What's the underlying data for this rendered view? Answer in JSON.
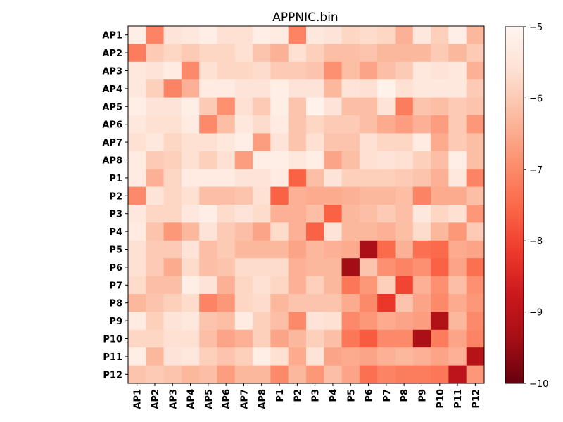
{
  "chart_data": {
    "type": "heatmap",
    "title": "APPNIC.bin",
    "labels": [
      "AP1",
      "AP2",
      "AP3",
      "AP4",
      "AP5",
      "AP6",
      "AP7",
      "AP8",
      "P1",
      "P2",
      "P3",
      "P4",
      "P5",
      "P6",
      "P7",
      "P8",
      "P9",
      "P10",
      "P11",
      "P12"
    ],
    "colorbar": {
      "min": -10,
      "max": -5,
      "ticks": [
        -10,
        -9,
        -8,
        -7,
        -6,
        -5
      ],
      "tick_labels": [
        "−10",
        "−9",
        "−8",
        "−7",
        "−6",
        "−5"
      ]
    },
    "values": [
      [
        -5.2,
        -7.1,
        -5.5,
        -5.4,
        -5.2,
        -5.6,
        -5.6,
        -5.2,
        -5.3,
        -7.1,
        -5.4,
        -5.5,
        -5.8,
        -5.7,
        -5.8,
        -6.4,
        -5.4,
        -5.9,
        -5.2,
        -6.3
      ],
      [
        -7.2,
        -6.0,
        -5.8,
        -6.0,
        -5.8,
        -5.8,
        -5.6,
        -6.1,
        -6.4,
        -5.6,
        -5.9,
        -6.2,
        -6.2,
        -6.1,
        -6.3,
        -6.3,
        -6.3,
        -6.0,
        -6.3,
        -6.0
      ],
      [
        -5.4,
        -5.5,
        -5.3,
        -7.0,
        -5.6,
        -5.8,
        -5.8,
        -5.7,
        -6.0,
        -6.0,
        -6.1,
        -6.9,
        -6.2,
        -6.6,
        -6.2,
        -6.0,
        -5.4,
        -5.5,
        -5.4,
        -6.4
      ],
      [
        -5.4,
        -5.9,
        -7.1,
        -6.4,
        -5.3,
        -5.3,
        -5.5,
        -5.5,
        -5.2,
        -5.5,
        -5.5,
        -6.3,
        -5.5,
        -5.6,
        -5.1,
        -5.6,
        -5.4,
        -5.4,
        -5.4,
        -6.0
      ],
      [
        -5.2,
        -5.5,
        -5.5,
        -5.2,
        -6.0,
        -6.9,
        -5.6,
        -6.0,
        -5.2,
        -6.1,
        -5.1,
        -5.5,
        -6.2,
        -6.2,
        -5.5,
        -7.2,
        -6.1,
        -6.2,
        -6.0,
        -6.1
      ],
      [
        -5.4,
        -5.6,
        -5.6,
        -5.3,
        -7.0,
        -6.2,
        -5.4,
        -5.7,
        -5.3,
        -6.1,
        -5.8,
        -6.0,
        -6.0,
        -6.2,
        -6.5,
        -6.7,
        -6.4,
        -6.7,
        -6.0,
        -6.8
      ],
      [
        -5.6,
        -5.4,
        -5.8,
        -5.6,
        -5.6,
        -5.4,
        -5.2,
        -6.7,
        -5.5,
        -6.1,
        -5.6,
        -6.1,
        -6.1,
        -5.6,
        -5.8,
        -5.8,
        -5.3,
        -6.5,
        -6.0,
        -6.2
      ],
      [
        -5.3,
        -6.0,
        -5.9,
        -5.6,
        -5.9,
        -5.6,
        -6.7,
        -5.2,
        -5.2,
        -5.4,
        -5.2,
        -6.6,
        -6.2,
        -5.6,
        -5.5,
        -5.6,
        -5.9,
        -6.2,
        -5.2,
        -6.2
      ],
      [
        -5.3,
        -6.4,
        -5.8,
        -5.3,
        -5.3,
        -5.3,
        -5.5,
        -5.5,
        -5.3,
        -7.6,
        -6.2,
        -5.5,
        -5.9,
        -5.9,
        -5.9,
        -6.0,
        -6.1,
        -6.4,
        -5.4,
        -7.1
      ],
      [
        -7.0,
        -5.5,
        -5.8,
        -5.6,
        -6.2,
        -6.2,
        -6.1,
        -5.6,
        -7.6,
        -6.4,
        -6.5,
        -6.5,
        -6.4,
        -6.3,
        -6.3,
        -6.2,
        -7.1,
        -6.5,
        -6.5,
        -6.2
      ],
      [
        -5.4,
        -5.8,
        -5.8,
        -5.4,
        -5.2,
        -5.7,
        -5.5,
        -5.7,
        -6.4,
        -6.4,
        -6.2,
        -7.6,
        -6.3,
        -6.2,
        -6.0,
        -6.2,
        -5.4,
        -5.8,
        -5.6,
        -6.8
      ],
      [
        -5.3,
        -6.1,
        -6.8,
        -6.3,
        -5.5,
        -6.0,
        -6.2,
        -6.6,
        -5.7,
        -6.4,
        -7.6,
        -5.5,
        -6.3,
        -6.3,
        -6.4,
        -6.2,
        -5.7,
        -6.3,
        -6.8,
        -6.0
      ],
      [
        -5.6,
        -6.0,
        -6.0,
        -5.5,
        -6.2,
        -6.0,
        -6.3,
        -6.3,
        -6.3,
        -6.6,
        -6.3,
        -6.4,
        -6.5,
        -9.3,
        -7.5,
        -6.4,
        -7.4,
        -7.5,
        -6.5,
        -6.6
      ],
      [
        -5.6,
        -6.0,
        -6.5,
        -5.7,
        -6.2,
        -6.1,
        -5.7,
        -5.7,
        -5.7,
        -6.4,
        -6.3,
        -6.3,
        -9.4,
        -6.1,
        -6.9,
        -7.1,
        -6.9,
        -7.6,
        -6.6,
        -7.4
      ],
      [
        -5.7,
        -6.2,
        -6.2,
        -5.2,
        -5.5,
        -6.4,
        -5.8,
        -5.6,
        -5.8,
        -6.4,
        -5.9,
        -6.3,
        -7.3,
        -6.8,
        -5.9,
        -8.0,
        -6.4,
        -6.9,
        -6.2,
        -6.9
      ],
      [
        -6.3,
        -6.1,
        -5.9,
        -5.7,
        -7.1,
        -6.8,
        -5.8,
        -5.7,
        -6.3,
        -6.1,
        -6.1,
        -6.1,
        -6.5,
        -7.0,
        -8.2,
        -6.1,
        -6.6,
        -7.0,
        -6.5,
        -6.8
      ],
      [
        -5.3,
        -5.9,
        -5.5,
        -5.4,
        -6.1,
        -6.2,
        -5.3,
        -5.9,
        -6.2,
        -7.0,
        -5.5,
        -5.6,
        -7.0,
        -6.8,
        -6.5,
        -6.6,
        -6.7,
        -9.2,
        -6.3,
        -7.0
      ],
      [
        -5.8,
        -5.8,
        -5.6,
        -5.6,
        -6.2,
        -6.6,
        -6.4,
        -5.9,
        -6.6,
        -6.3,
        -5.9,
        -6.2,
        -7.3,
        -7.7,
        -7.0,
        -7.0,
        -9.3,
        -7.2,
        -6.6,
        -7.1
      ],
      [
        -5.2,
        -6.3,
        -5.5,
        -5.4,
        -5.9,
        -6.1,
        -5.9,
        -5.2,
        -5.6,
        -6.5,
        -5.5,
        -6.6,
        -6.5,
        -6.6,
        -6.4,
        -6.3,
        -6.4,
        -6.6,
        -6.4,
        -9.1
      ],
      [
        -6.1,
        -6.0,
        -6.1,
        -6.3,
        -6.2,
        -6.7,
        -6.3,
        -6.3,
        -7.0,
        -6.3,
        -6.8,
        -6.2,
        -6.6,
        -7.4,
        -7.1,
        -7.2,
        -7.2,
        -7.3,
        -9.0,
        -6.8
      ]
    ]
  }
}
